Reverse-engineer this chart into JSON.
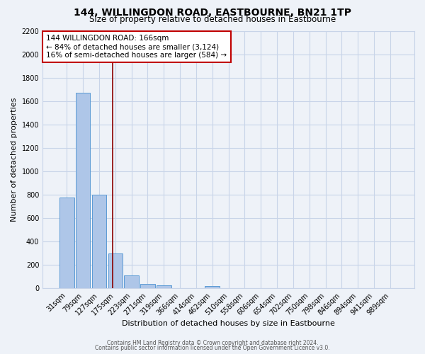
{
  "title": "144, WILLINGDON ROAD, EASTBOURNE, BN21 1TP",
  "subtitle": "Size of property relative to detached houses in Eastbourne",
  "xlabel": "Distribution of detached houses by size in Eastbourne",
  "ylabel": "Number of detached properties",
  "bar_labels": [
    "31sqm",
    "79sqm",
    "127sqm",
    "175sqm",
    "223sqm",
    "271sqm",
    "319sqm",
    "366sqm",
    "414sqm",
    "462sqm",
    "510sqm",
    "558sqm",
    "606sqm",
    "654sqm",
    "702sqm",
    "750sqm",
    "798sqm",
    "846sqm",
    "894sqm",
    "941sqm",
    "989sqm"
  ],
  "bar_values": [
    775,
    1670,
    800,
    295,
    110,
    38,
    28,
    0,
    0,
    18,
    0,
    0,
    0,
    0,
    0,
    0,
    0,
    0,
    0,
    0,
    0
  ],
  "bar_color": "#aec6e8",
  "bar_edge_color": "#5b9bd5",
  "vline_x": 2.83,
  "vline_color": "#8b0000",
  "annotation_title": "144 WILLINGDON ROAD: 166sqm",
  "annotation_line1": "← 84% of detached houses are smaller (3,124)",
  "annotation_line2": "16% of semi-detached houses are larger (584) →",
  "annotation_box_color": "#ffffff",
  "annotation_box_edge": "#c00000",
  "ylim": [
    0,
    2200
  ],
  "yticks": [
    0,
    200,
    400,
    600,
    800,
    1000,
    1200,
    1400,
    1600,
    1800,
    2000,
    2200
  ],
  "footer1": "Contains HM Land Registry data © Crown copyright and database right 2024.",
  "footer2": "Contains public sector information licensed under the Open Government Licence v3.0.",
  "background_color": "#eef2f8",
  "grid_color": "#c8d4e8",
  "title_fontsize": 10,
  "subtitle_fontsize": 8.5,
  "axis_label_fontsize": 8,
  "tick_fontsize": 7
}
